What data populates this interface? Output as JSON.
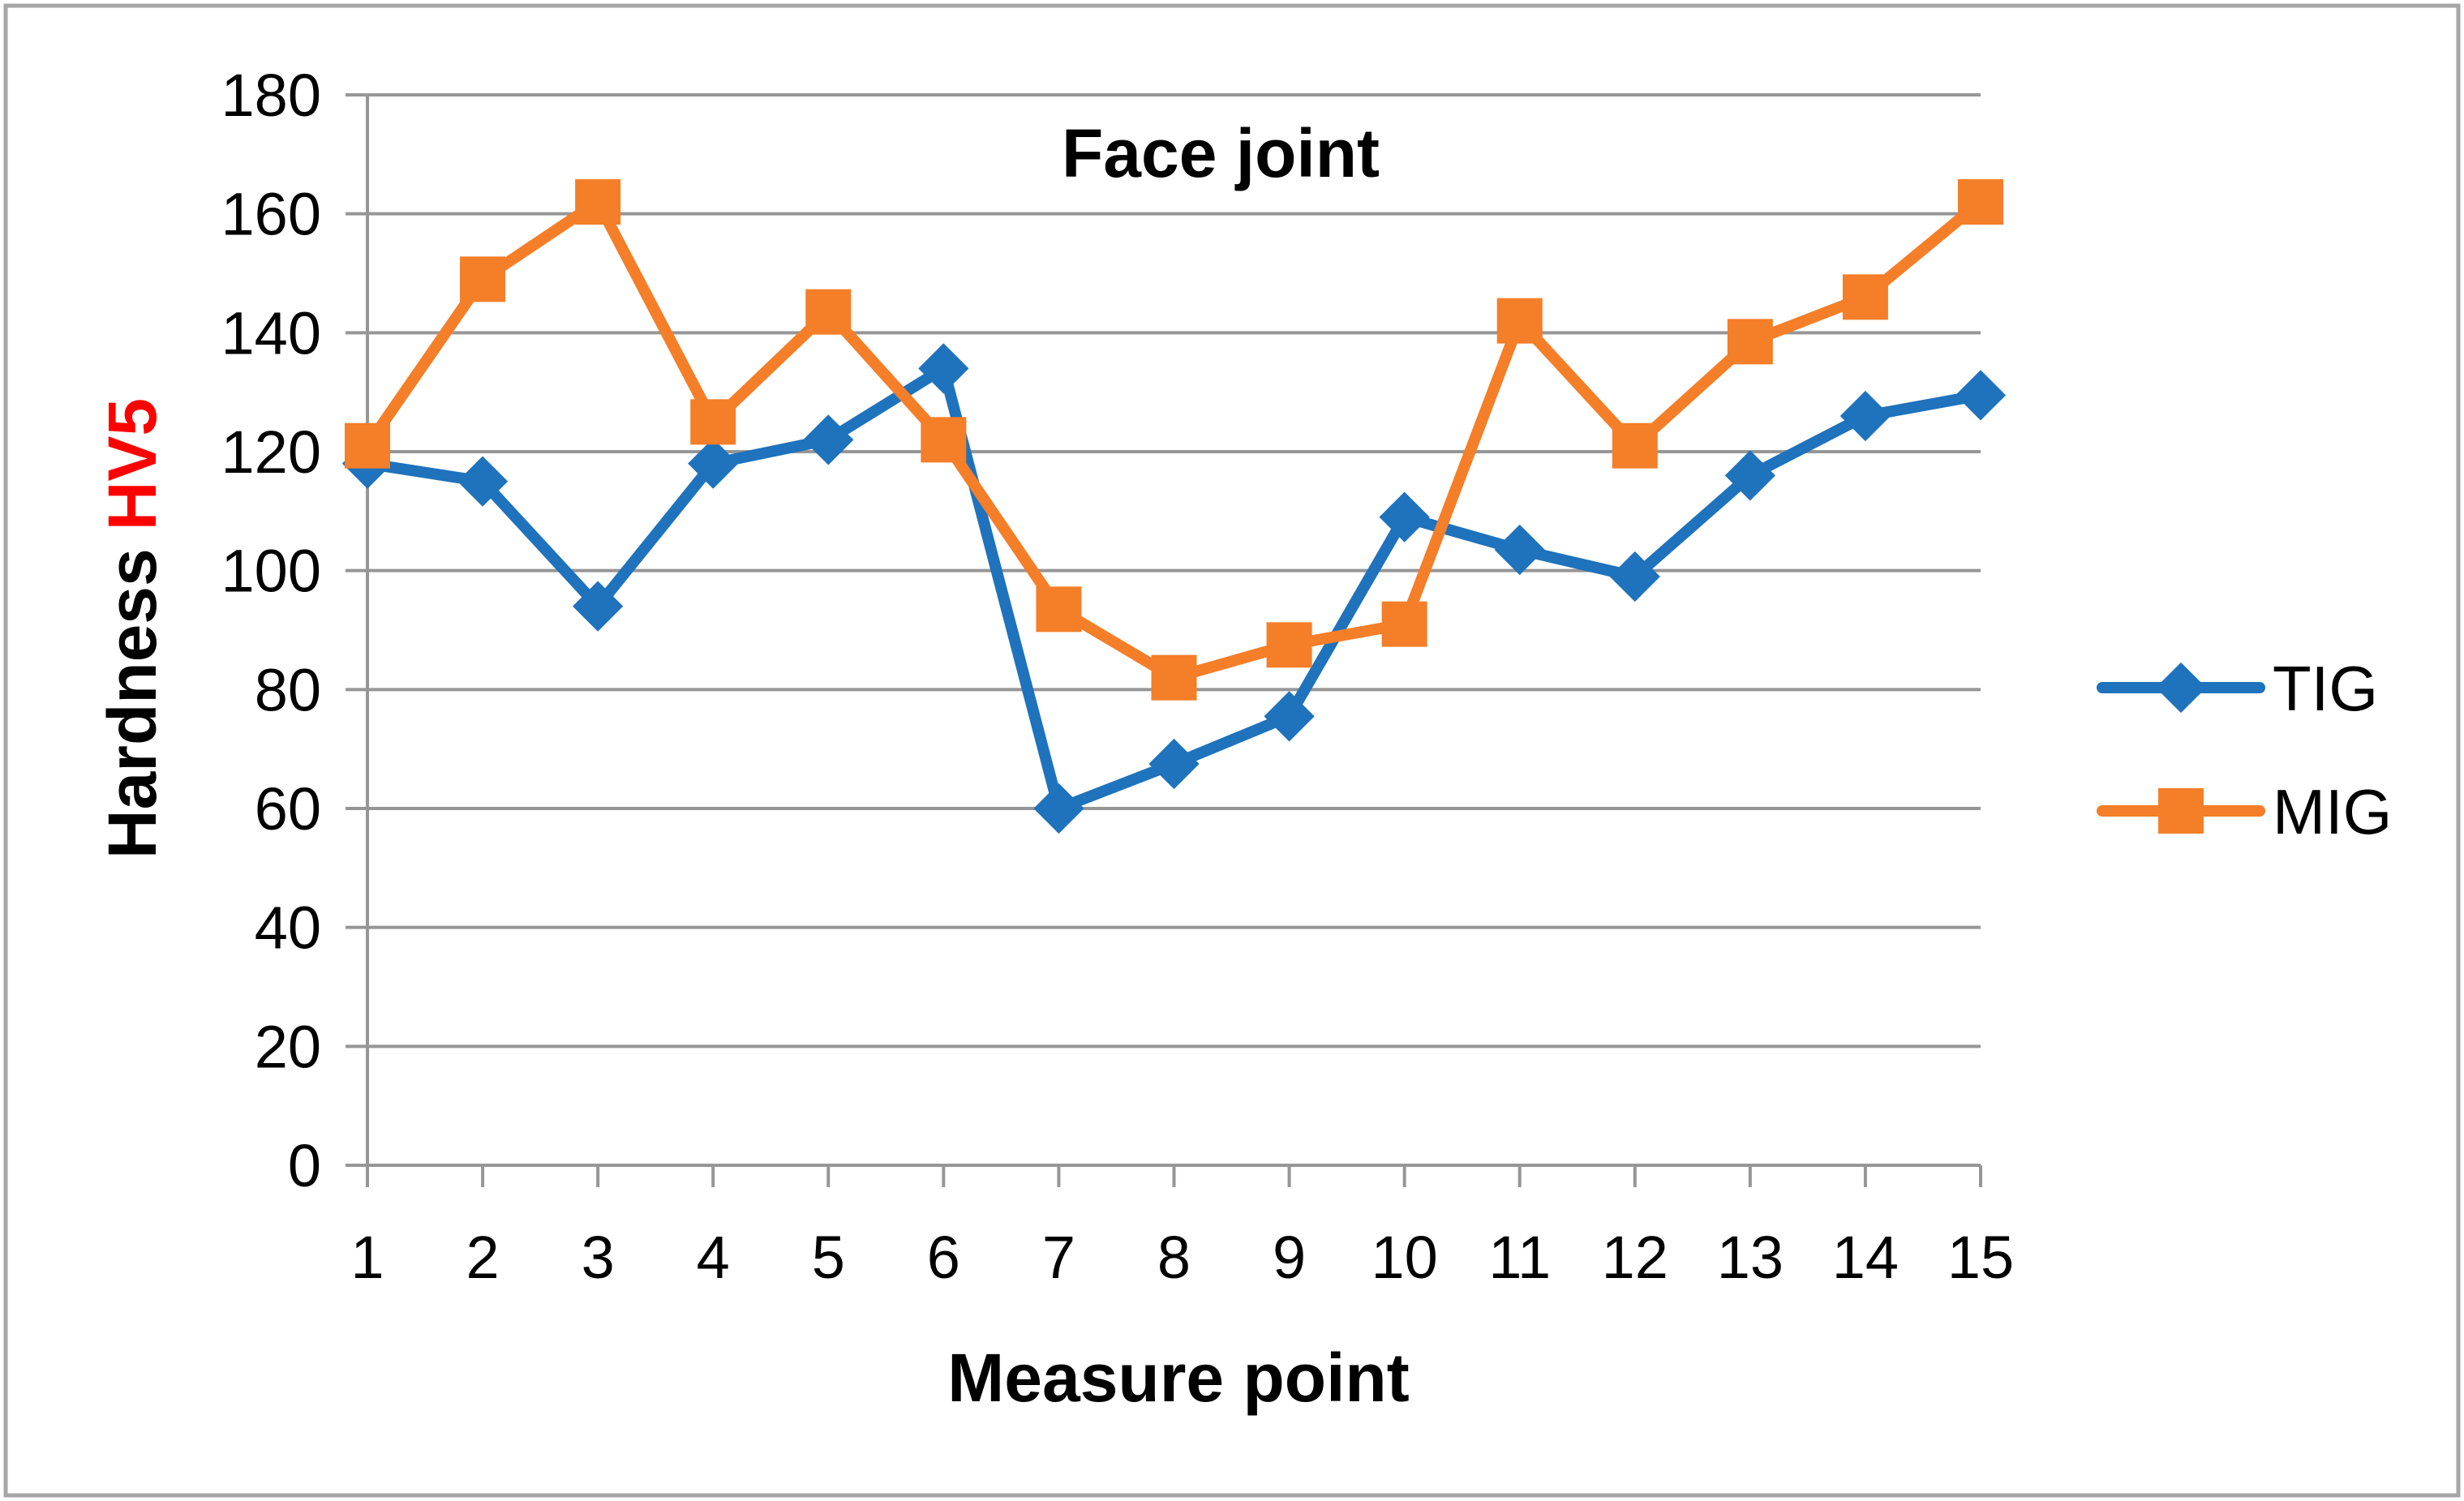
{
  "chart_data": {
    "type": "line",
    "title": "Face joint",
    "xlabel": "Measure point",
    "ylabel": "Hardness HV5",
    "ylabel_main": "Hardness",
    "ylabel_unit": "HV5",
    "ylabel_unit_color": "#FF0000",
    "categories": [
      "1",
      "2",
      "3",
      "4",
      "5",
      "6",
      "7",
      "8",
      "9",
      "10",
      "11",
      "12",
      "13",
      "14",
      "15"
    ],
    "series": [
      {
        "name": "TIG",
        "color": "#1F72BC",
        "marker": "diamond",
        "values": [
          118,
          115,
          94,
          118,
          122,
          134,
          60,
          67.5,
          75.5,
          109,
          103.5,
          99,
          116,
          126,
          129.5
        ]
      },
      {
        "name": "MIG",
        "color": "#F57E28",
        "marker": "square",
        "values": [
          121,
          149,
          162,
          125,
          143.5,
          122,
          93.5,
          82,
          87.5,
          91,
          142,
          121,
          138.5,
          146,
          162
        ]
      }
    ],
    "ylim": [
      0,
      180
    ],
    "ytick_step": 20,
    "yticks": [
      0,
      20,
      40,
      60,
      80,
      100,
      120,
      140,
      160,
      180
    ],
    "grid": "horizontal",
    "gridline_color": "#969696",
    "axis_color": "#969696",
    "border_color": "#A6A6A6",
    "background": "#FFFFFF",
    "legend_position": "right"
  }
}
